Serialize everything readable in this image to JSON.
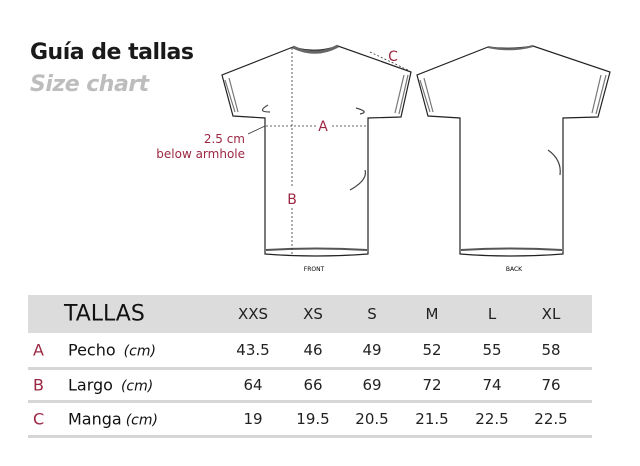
{
  "title": "Guía de tallas",
  "subtitle": "Size chart",
  "diagram": {
    "measure_note_line1": "2.5 cm",
    "measure_note_line2": "below armhole",
    "label_a": "A",
    "label_b": "B",
    "label_c": "C",
    "front_label": "FRONT",
    "back_label": "BACK",
    "accent_color": "#9b2743"
  },
  "table": {
    "header": "TALLAS",
    "sizes": [
      "XXS",
      "XS",
      "S",
      "M",
      "L",
      "XL"
    ],
    "rows": [
      {
        "letter": "A",
        "label": "Pecho",
        "unit": "(cm)",
        "values": [
          "43.5",
          "46",
          "49",
          "52",
          "55",
          "58"
        ]
      },
      {
        "letter": "B",
        "label": "Largo",
        "unit": "(cm)",
        "values": [
          "64",
          "66",
          "69",
          "72",
          "74",
          "76"
        ]
      },
      {
        "letter": "C",
        "label": "Manga",
        "unit": "(cm)",
        "values": [
          "19",
          "19.5",
          "20.5",
          "21.5",
          "22.5",
          "22.5"
        ]
      }
    ]
  }
}
